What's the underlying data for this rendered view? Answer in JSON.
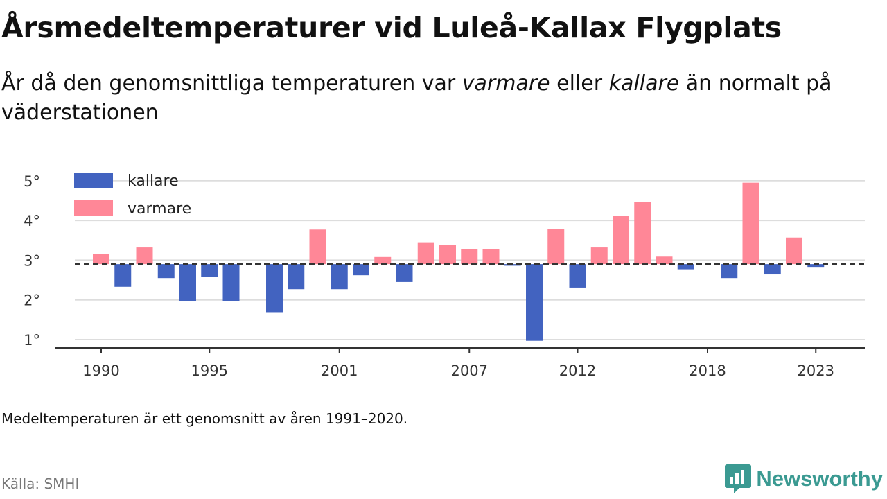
{
  "header": {
    "title": "Årsmedeltemperaturer vid Luleå-Kallax Flygplats",
    "subtitle_part1": "År då den genomsnittliga temperaturen var ",
    "subtitle_em1": "varmare",
    "subtitle_part2": " eller ",
    "subtitle_em2": "kallare",
    "subtitle_part3": " än normalt på väderstationen"
  },
  "footnote": "Medeltemperaturen är ett genomsnitt av åren 1991–2020.",
  "source": "Källa: SMHI",
  "brand": {
    "name": "Newsworthy",
    "icon": "newsworthy-logo-icon",
    "color": "#3b9a92"
  },
  "colors": {
    "colder": "#4263c0",
    "warmer": "#ff8797",
    "reference": "#333333",
    "grid": "#dddddd"
  },
  "chart_data": {
    "type": "bar",
    "title": "Årsmedeltemperaturer vid Luleå-Kallax Flygplats",
    "reference_value": 2.9,
    "reference_style": "dashed",
    "x": [
      1990,
      1991,
      1992,
      1993,
      1994,
      1995,
      1996,
      1997,
      1998,
      1999,
      2000,
      2001,
      2002,
      2003,
      2004,
      2005,
      2006,
      2007,
      2008,
      2009,
      2010,
      2011,
      2012,
      2013,
      2014,
      2015,
      2016,
      2017,
      2018,
      2019,
      2020,
      2021,
      2022,
      2023
    ],
    "values": [
      3.15,
      2.33,
      3.32,
      2.55,
      1.96,
      2.58,
      1.97,
      null,
      1.69,
      2.27,
      3.77,
      2.27,
      2.62,
      3.08,
      2.45,
      3.45,
      3.38,
      3.28,
      3.28,
      2.86,
      0.97,
      3.78,
      2.31,
      3.32,
      4.12,
      4.46,
      3.09,
      2.77,
      null,
      2.55,
      4.95,
      2.64,
      3.57,
      2.83
    ],
    "xticks": [
      1990,
      1995,
      2001,
      2007,
      2012,
      2018,
      2023
    ],
    "xtick_labels": [
      "1990",
      "1995",
      "2001",
      "2007",
      "2012",
      "2018",
      "2023"
    ],
    "yticks": [
      1,
      2,
      3,
      4,
      5
    ],
    "ytick_labels": [
      "1°",
      "2°",
      "3°",
      "4°",
      "5°"
    ],
    "ylim": [
      0.8,
      5.4
    ],
    "grid": true,
    "legend": {
      "placement": "top-left",
      "entries": [
        {
          "name": "kallare",
          "color": "#4263c0"
        },
        {
          "name": "varmare",
          "color": "#ff8797"
        }
      ]
    }
  }
}
